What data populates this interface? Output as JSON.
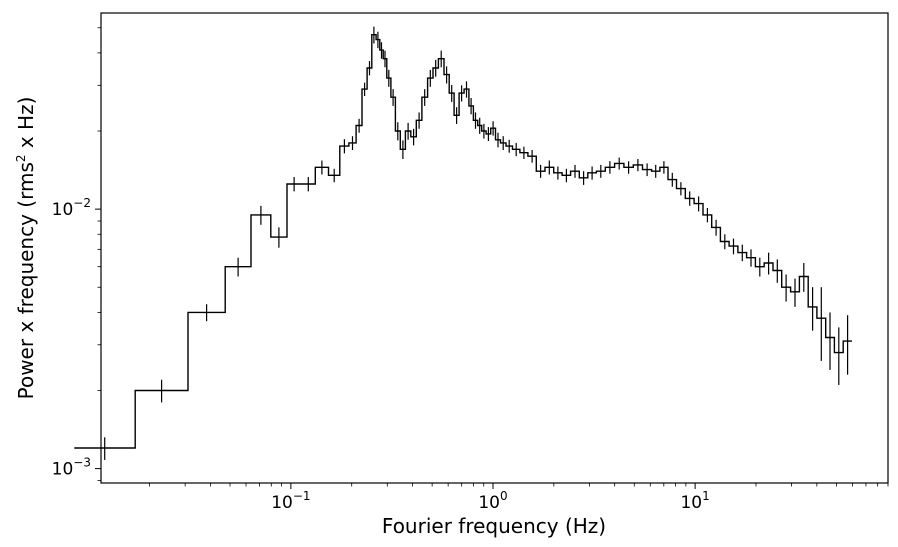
{
  "chart_data": {
    "type": "line",
    "title": "",
    "xlabel": "Fourier frequency (Hz)",
    "ylabel_parts": [
      "Power x frequency (rms",
      "2",
      " x Hz)"
    ],
    "xscale": "log",
    "yscale": "log",
    "xlim": [
      0.0115,
      90
    ],
    "ylim": [
      0.00088,
      0.057
    ],
    "grid": false,
    "legend": "none",
    "line_color": "#000000",
    "x_ticks": [
      {
        "value": 0.1,
        "base": "10",
        "exp": "−1"
      },
      {
        "value": 1,
        "base": "10",
        "exp": "0"
      },
      {
        "value": 10,
        "base": "10",
        "exp": "1"
      }
    ],
    "y_ticks": [
      {
        "value": 0.001,
        "base": "10",
        "exp": "−3"
      },
      {
        "value": 0.01,
        "base": "10",
        "exp": "−2"
      }
    ],
    "series": [
      {
        "x": [
          0.012,
          0.024,
          0.04,
          0.056,
          0.072,
          0.088,
          0.104,
          0.122,
          0.143,
          0.165,
          0.185,
          0.203,
          0.218,
          0.232,
          0.245,
          0.258,
          0.27,
          0.281,
          0.292,
          0.305,
          0.32,
          0.338,
          0.358,
          0.38,
          0.405,
          0.43,
          0.46,
          0.49,
          0.52,
          0.555,
          0.59,
          0.625,
          0.66,
          0.7,
          0.74,
          0.78,
          0.82,
          0.86,
          0.9,
          0.95,
          1.0,
          1.06,
          1.12,
          1.2,
          1.3,
          1.42,
          1.56,
          1.72,
          1.9,
          2.1,
          2.3,
          2.55,
          2.8,
          3.1,
          3.4,
          3.8,
          4.2,
          4.7,
          5.2,
          5.8,
          6.4,
          7.0,
          7.7,
          8.5,
          9.4,
          10.4,
          11.5,
          12.7,
          14.0,
          15.5,
          17.1,
          18.9,
          20.9,
          23.1,
          25.5,
          28.2,
          31.2,
          34.5,
          38.1,
          42.1,
          46.5,
          51.4,
          56.8
        ],
        "y": [
          0.0012,
          0.002,
          0.004,
          0.006,
          0.0095,
          0.0078,
          0.0125,
          0.0125,
          0.0145,
          0.0135,
          0.0175,
          0.018,
          0.021,
          0.029,
          0.035,
          0.047,
          0.045,
          0.041,
          0.038,
          0.032,
          0.027,
          0.02,
          0.017,
          0.02,
          0.019,
          0.022,
          0.027,
          0.032,
          0.035,
          0.038,
          0.033,
          0.028,
          0.023,
          0.028,
          0.029,
          0.025,
          0.022,
          0.021,
          0.02,
          0.0195,
          0.0205,
          0.0185,
          0.018,
          0.0175,
          0.017,
          0.0165,
          0.016,
          0.014,
          0.0145,
          0.0138,
          0.0135,
          0.014,
          0.0132,
          0.0138,
          0.014,
          0.0145,
          0.015,
          0.0145,
          0.0148,
          0.0142,
          0.014,
          0.0145,
          0.013,
          0.012,
          0.011,
          0.0105,
          0.0095,
          0.0085,
          0.0075,
          0.0072,
          0.0068,
          0.0065,
          0.006,
          0.0062,
          0.0058,
          0.005,
          0.0048,
          0.0055,
          0.0042,
          0.0038,
          0.0032,
          0.0028,
          0.0031
        ],
        "err": [
          0.00012,
          0.0002,
          0.0003,
          0.0005,
          0.0008,
          0.0007,
          0.0008,
          0.0008,
          0.0009,
          0.0008,
          0.0011,
          0.0011,
          0.0013,
          0.0017,
          0.0022,
          0.0035,
          0.0033,
          0.003,
          0.0028,
          0.0024,
          0.002,
          0.0016,
          0.0014,
          0.0015,
          0.0014,
          0.0016,
          0.002,
          0.0024,
          0.0026,
          0.0028,
          0.0025,
          0.0021,
          0.0017,
          0.002,
          0.0021,
          0.0018,
          0.0016,
          0.0015,
          0.0013,
          0.0012,
          0.0013,
          0.0012,
          0.0011,
          0.001,
          0.001,
          0.0009,
          0.0009,
          0.0008,
          0.0009,
          0.0008,
          0.0008,
          0.0008,
          0.0008,
          0.0008,
          0.0008,
          0.0008,
          0.0008,
          0.0008,
          0.0008,
          0.0008,
          0.0008,
          0.0008,
          0.0008,
          0.0007,
          0.0007,
          0.0007,
          0.0006,
          0.0006,
          0.0005,
          0.0005,
          0.0005,
          0.0005,
          0.0005,
          0.0006,
          0.0006,
          0.0006,
          0.0006,
          0.0007,
          0.0008,
          0.0012,
          0.0008,
          0.0007,
          0.0008
        ]
      }
    ]
  }
}
